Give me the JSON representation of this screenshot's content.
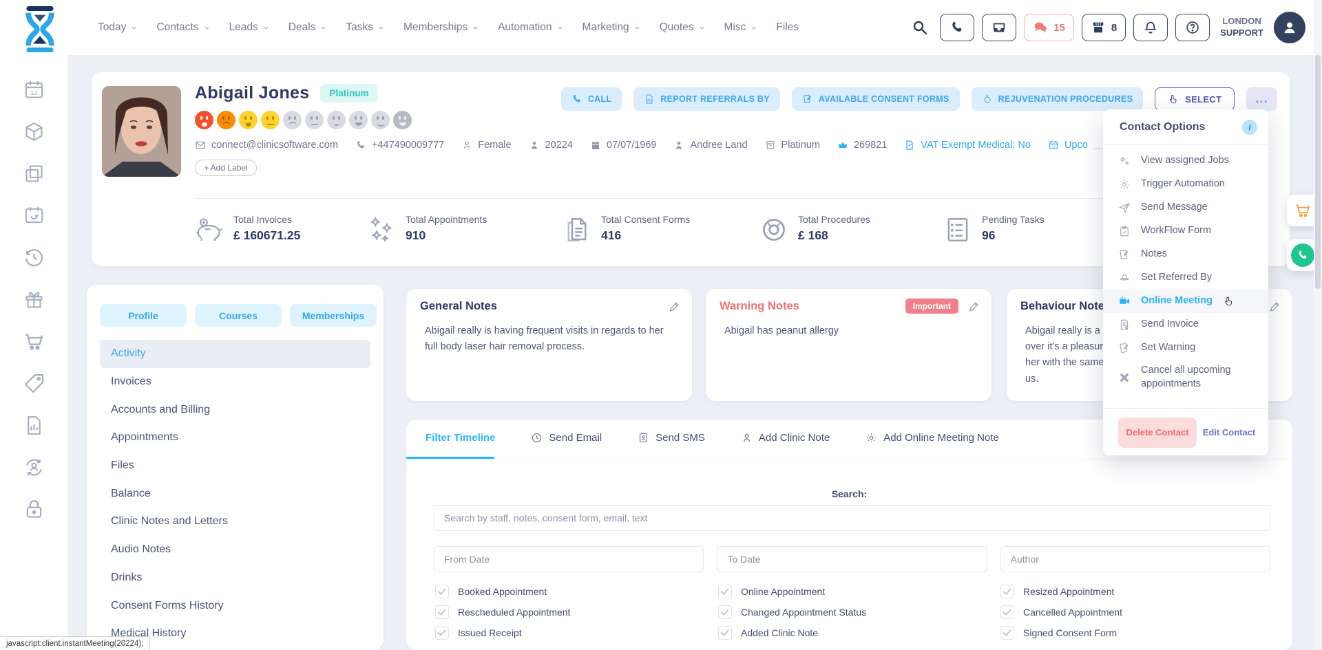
{
  "colors": {
    "accent_blue": "#29b6f6",
    "navy": "#2c3a64",
    "pink": "#ee7a7a",
    "teal": "#27c5b9",
    "indigo": "#5b67c3",
    "cart_orange": "#f2a33c",
    "call_green": "#21c58f",
    "warning_red": "#ef7272"
  },
  "topbar": {
    "nav": [
      {
        "label": "Today",
        "chevron": true
      },
      {
        "label": "Contacts",
        "chevron": true
      },
      {
        "label": "Leads",
        "chevron": true
      },
      {
        "label": "Deals",
        "chevron": true
      },
      {
        "label": "Tasks",
        "chevron": true
      },
      {
        "label": "Memberships",
        "chevron": true
      },
      {
        "label": "Automation",
        "chevron": true
      },
      {
        "label": "Marketing",
        "chevron": true
      },
      {
        "label": "Quotes",
        "chevron": true
      },
      {
        "label": "Misc",
        "chevron": true
      },
      {
        "label": "Files",
        "chevron": false
      }
    ],
    "messages_count": "15",
    "shop_count": "8",
    "location_line1": "LONDON",
    "location_line2": "SUPPORT"
  },
  "rail": {
    "icons": [
      "calendar12-icon",
      "cube-icon",
      "copy-icon",
      "calendar-return-icon",
      "history-icon",
      "gift-icon",
      "cart-icon",
      "tag-icon",
      "report-icon",
      "person-sync-icon",
      "lock-icon"
    ]
  },
  "contact": {
    "name": "Abigail Jones",
    "tier_badge": "Platinum",
    "add_label": "+ Add Label",
    "emojis": [
      {
        "bg": "#f4502e",
        "fg": "#ffffff",
        "mouth": "frown-open"
      },
      {
        "bg": "#fb8c00",
        "fg": "#b35c00",
        "mouth": "frown"
      },
      {
        "bg": "#fdd22e",
        "fg": "#b38f00",
        "mouth": "frown-open"
      },
      {
        "bg": "#fdd22e",
        "fg": "#b38f00",
        "mouth": "neutral"
      },
      {
        "bg": "#d9dbe0",
        "fg": "#9ba0ab",
        "mouth": "frown"
      },
      {
        "bg": "#d9dbe0",
        "fg": "#9ba0ab",
        "mouth": "neutral"
      },
      {
        "bg": "#d9dbe0",
        "fg": "#9ba0ab",
        "mouth": "slight-smile"
      },
      {
        "bg": "#d9dbe0",
        "fg": "#9ba0ab",
        "mouth": "smile-open"
      },
      {
        "bg": "#d9dbe0",
        "fg": "#9ba0ab",
        "mouth": "smile"
      },
      {
        "bg": "#b7bac3",
        "fg": "#f2f2f2",
        "mouth": "smile-open"
      }
    ],
    "info": [
      {
        "icon": "mail-icon",
        "text": "connect@clinicsoftware.com"
      },
      {
        "icon": "phone-solid-icon",
        "text": "+447490009777"
      },
      {
        "icon": "person-outline-icon",
        "text": "Female"
      },
      {
        "icon": "person-icon",
        "text": "20224"
      },
      {
        "icon": "calendar-solid-icon",
        "text": "07/07/1969"
      },
      {
        "icon": "person-icon",
        "text": "Andree Land"
      },
      {
        "icon": "archive-icon",
        "text": "Platinum"
      },
      {
        "icon": "crown-icon",
        "text": "269821",
        "icon_blue": true
      },
      {
        "icon": "file-icon",
        "text": "VAT Exempt Medical: No",
        "link": true
      },
      {
        "icon": "calendar-outline-icon",
        "text": "Upco",
        "link": true,
        "tail": true
      }
    ],
    "buttons": [
      {
        "label": "CALL",
        "icon": "phone-solid-icon",
        "style": "light"
      },
      {
        "label": "REPORT REFERRALS BY",
        "icon": "report-icon",
        "style": "light"
      },
      {
        "label": "AVAILABLE CONSENT FORMS",
        "icon": "note-icon",
        "style": "light"
      },
      {
        "label": "REJUVENATION PROCEDURES",
        "icon": "sparkle-icon",
        "style": "light"
      },
      {
        "label": "SELECT",
        "icon": "hand-icon",
        "style": "select"
      },
      {
        "label": "...",
        "style": "dots"
      }
    ],
    "stats": [
      {
        "icon": "piggy-icon",
        "label": "Total Invoices",
        "value": "£ 160671.25"
      },
      {
        "icon": "stars-icon",
        "label": "Total Appointments",
        "value": "910"
      },
      {
        "icon": "consent-icon",
        "label": "Total Consent Forms",
        "value": "416"
      },
      {
        "icon": "donut-icon",
        "label": "Total Procedures",
        "value": "£ 168"
      },
      {
        "icon": "tasks-icon",
        "label": "Pending Tasks",
        "value": "96"
      }
    ]
  },
  "left_panel": {
    "tabs": [
      "Profile",
      "Courses",
      "Memberships"
    ],
    "menu": [
      {
        "label": "Activity",
        "active": true
      },
      {
        "label": "Invoices"
      },
      {
        "label": "Accounts and Billing"
      },
      {
        "label": "Appointments"
      },
      {
        "label": "Files"
      },
      {
        "label": "Balance"
      },
      {
        "label": "Clinic Notes and Letters"
      },
      {
        "label": "Audio Notes"
      },
      {
        "label": "Drinks"
      },
      {
        "label": "Consent Forms History"
      },
      {
        "label": "Medical History"
      }
    ]
  },
  "notes": [
    {
      "title": "General Notes",
      "warn": false,
      "badge": "",
      "lines": [
        "Abigail really is having frequent visits in regards to her full body laser hair removal process."
      ]
    },
    {
      "title": "Warning Notes",
      "warn": true,
      "badge": "Important",
      "lines": [
        "Abigail has peanut allergy"
      ]
    },
    {
      "title": "Behaviour Notes",
      "warn": false,
      "badge": "",
      "lines": [
        "Abigail really is a p",
        "over it's a pleasur",
        "her with the same",
        "us."
      ]
    }
  ],
  "timeline": {
    "tabs": [
      {
        "label": "Filter Timeline",
        "active": true
      },
      {
        "label": "Send Email",
        "icon": "clock-icon"
      },
      {
        "label": "Send SMS",
        "icon": "idcard-icon"
      },
      {
        "label": "Add Clinic Note",
        "icon": "person-outline-icon"
      },
      {
        "label": "Add Online Meeting Note",
        "icon": "gear-icon"
      }
    ],
    "search_label": "Search:",
    "search_placeholder": "Search by staff, notes, consent form, email, text",
    "filters": [
      "From Date",
      "To Date",
      "Author"
    ],
    "checkboxes": [
      {
        "label": "Booked Appointment",
        "checked": true
      },
      {
        "label": "Online Appointment",
        "checked": true
      },
      {
        "label": "Resized Appointment",
        "checked": true
      },
      {
        "label": "Rescheduled Appointment",
        "checked": true
      },
      {
        "label": "Changed Appointment Status",
        "checked": true
      },
      {
        "label": "Cancelled Appointment",
        "checked": true
      },
      {
        "label": "Issued Receipt",
        "checked": true
      },
      {
        "label": "Added Clinic Note",
        "checked": true
      },
      {
        "label": "Signed Consent Form",
        "checked": true
      }
    ]
  },
  "dropdown": {
    "title": "Contact Options",
    "info_badge": "i",
    "items": [
      {
        "label": "View assigned Jobs",
        "icon": "gears-icon"
      },
      {
        "label": "Trigger Automation",
        "icon": "gear-icon"
      },
      {
        "label": "Send Message",
        "icon": "send-icon"
      },
      {
        "label": "WorkFlow Form",
        "icon": "clipboard-icon"
      },
      {
        "label": "Notes",
        "icon": "note-icon"
      },
      {
        "label": "Set Referred By",
        "icon": "hat-icon"
      },
      {
        "label": "Online Meeting",
        "icon": "camera-icon",
        "active": true,
        "cursor": true
      },
      {
        "label": "Send Invoice",
        "icon": "invoice-icon"
      },
      {
        "label": "Set Warning",
        "icon": "note-icon"
      },
      {
        "label": "Cancel all upcoming appointments",
        "icon": "x-icon",
        "tall": true
      }
    ],
    "delete_label": "Delete Contact",
    "edit_label": "Edit Contact"
  },
  "statusbar": "javascript:client.instantMeeting(20224);"
}
